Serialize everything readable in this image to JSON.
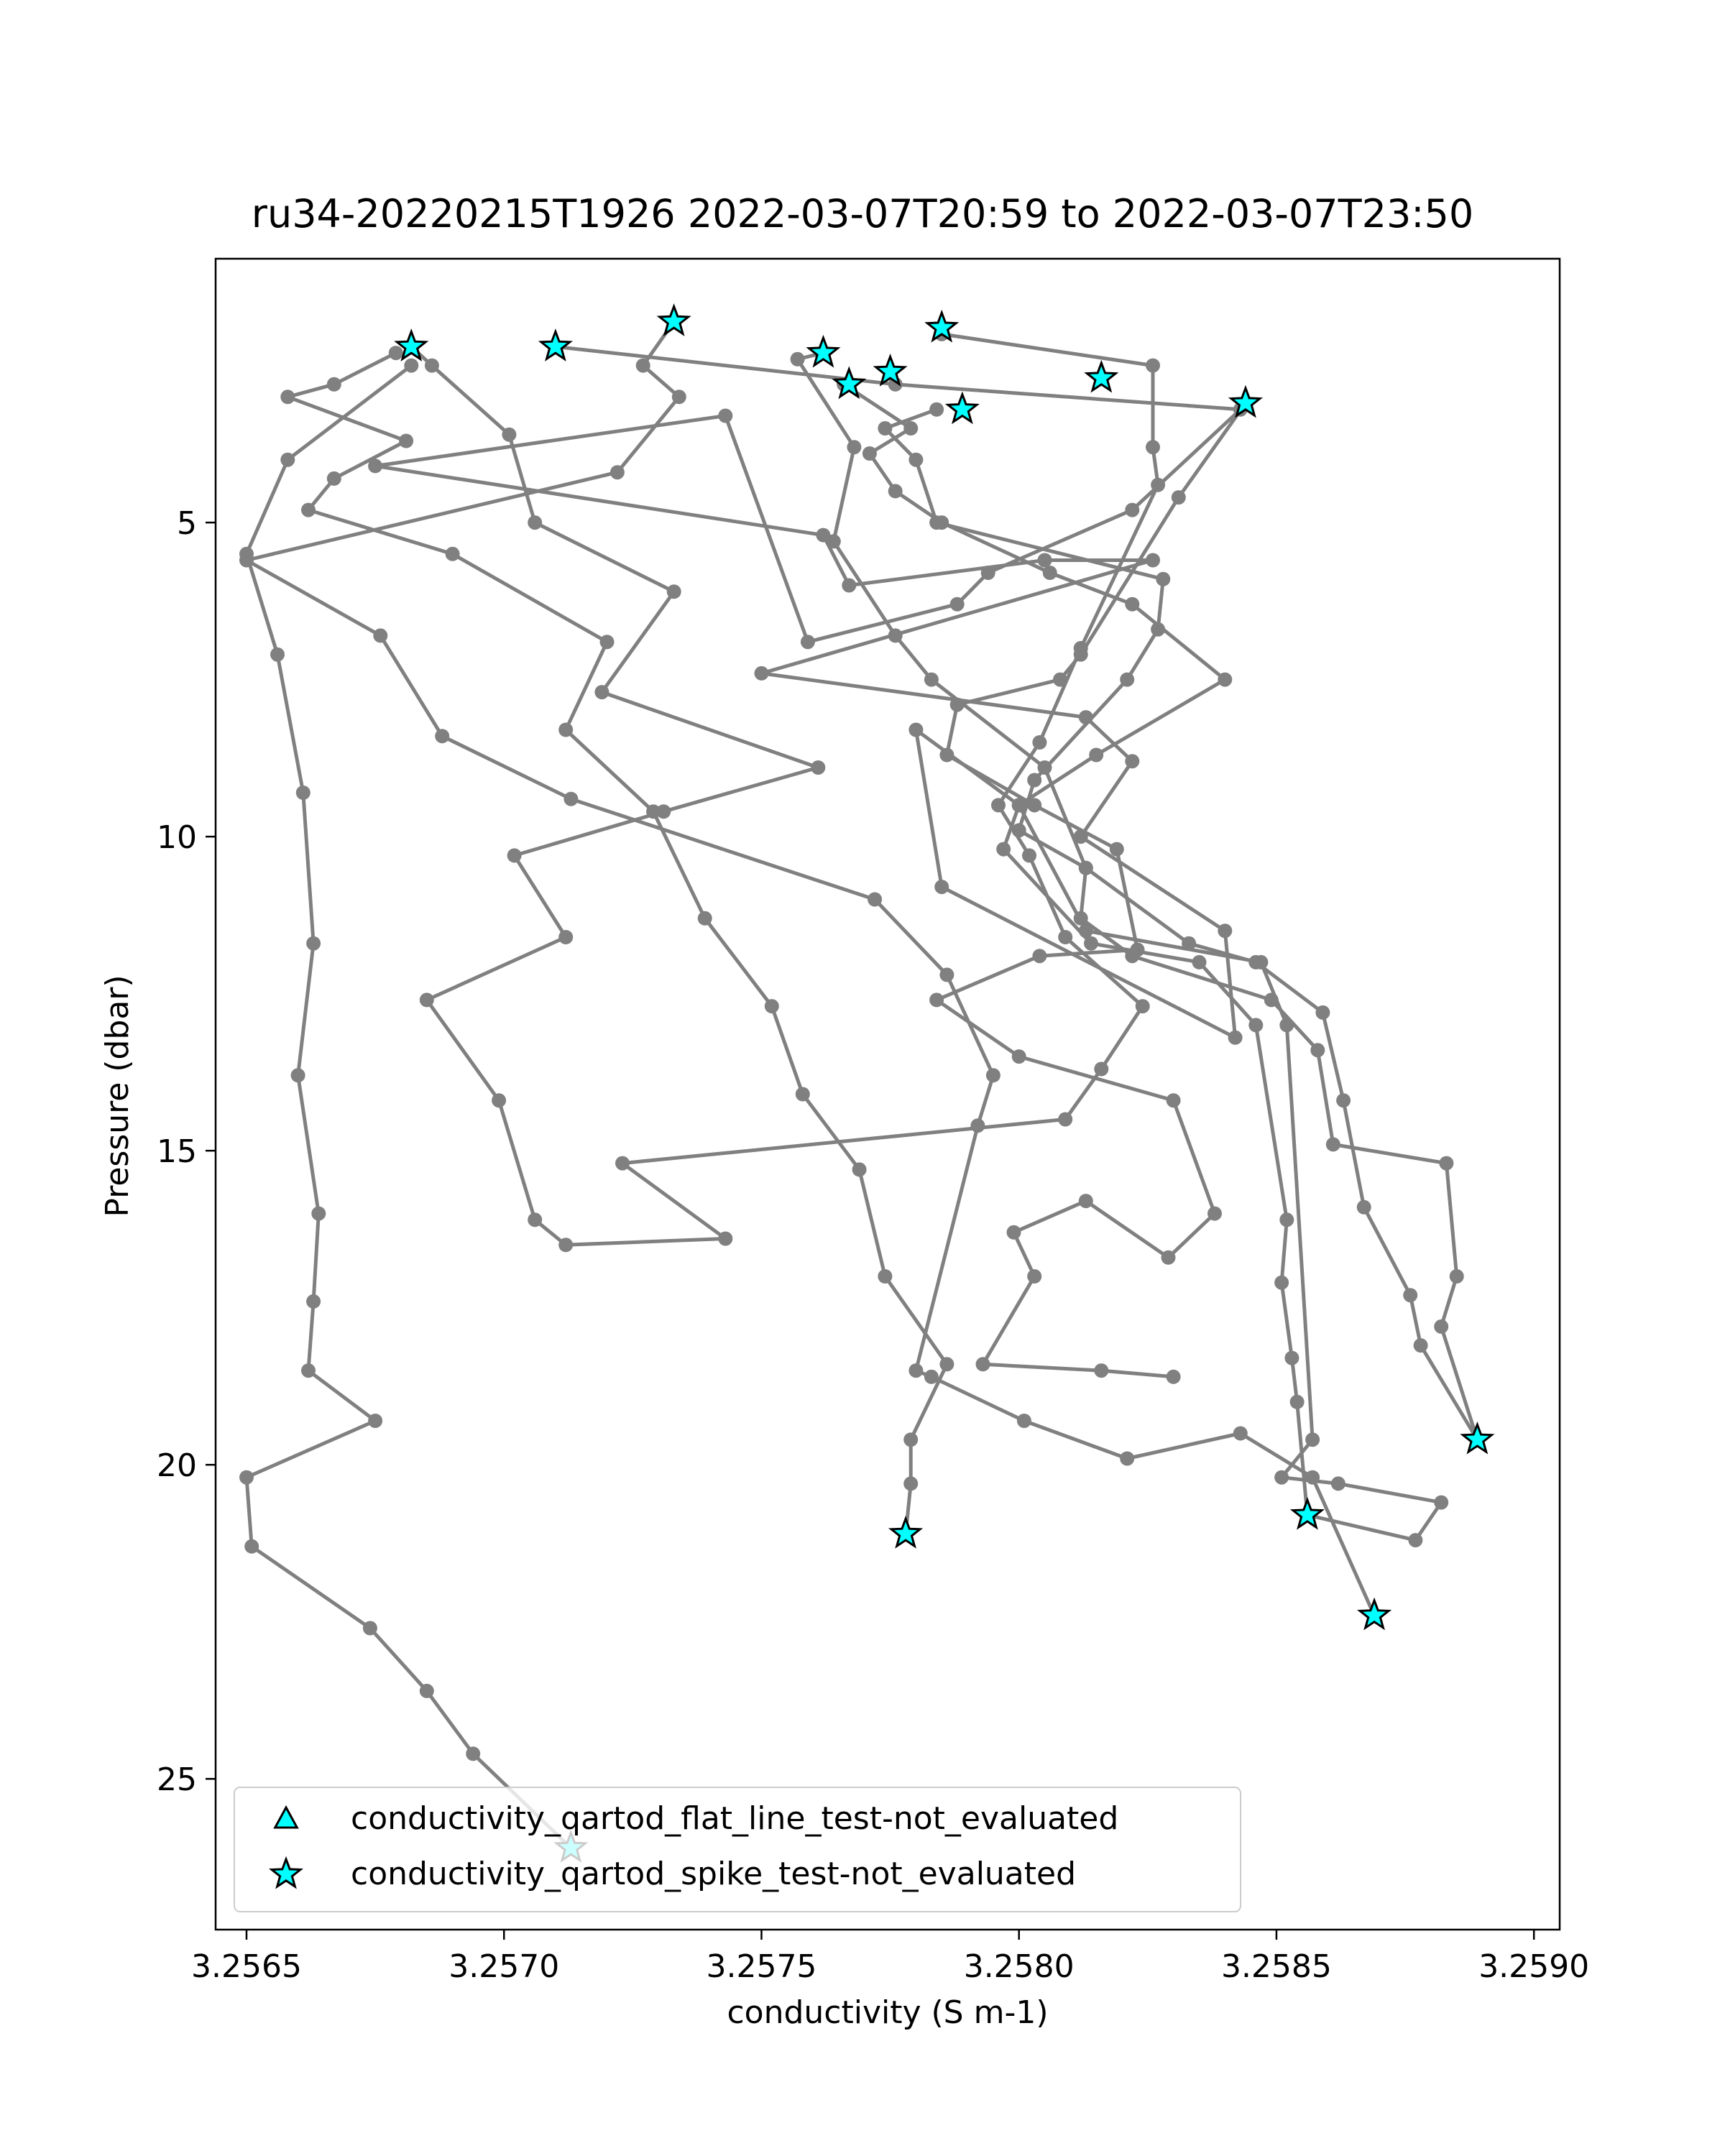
{
  "chart_data": {
    "type": "line",
    "title": "ru34-20220215T1926 2022-03-07T20:59 to 2022-03-07T23:50",
    "xlabel": "conductivity (S m-1)",
    "ylabel": "Pressure (dbar)",
    "xlim": [
      3.25644,
      3.25905
    ],
    "ylim": [
      27.4,
      0.8
    ],
    "y_inverted": true,
    "x_ticks": [
      3.2565,
      3.257,
      3.2575,
      3.258,
      3.2585,
      3.259
    ],
    "x_tick_labels": [
      "3.2565",
      "3.2570",
      "3.2575",
      "3.2580",
      "3.2585",
      "3.2590"
    ],
    "y_ticks": [
      5,
      10,
      15,
      20,
      25
    ],
    "y_tick_labels": [
      "5",
      "10",
      "15",
      "20",
      "25"
    ],
    "grid": false,
    "legend_position": "lower-left",
    "colors": {
      "line": "#808080",
      "marker_fill": "#00ffff",
      "marker_edge": "#000000"
    },
    "series": [
      {
        "values": [
          [
            3.25682,
            2.2
          ],
          [
            3.25686,
            2.5
          ],
          [
            3.25701,
            3.6
          ],
          [
            3.25706,
            5.0
          ],
          [
            3.25733,
            6.1
          ],
          [
            3.25719,
            7.7
          ],
          [
            3.25761,
            8.9
          ],
          [
            3.25731,
            9.6
          ],
          [
            3.25702,
            10.3
          ],
          [
            3.25712,
            11.6
          ],
          [
            3.25685,
            12.6
          ],
          [
            3.25699,
            14.2
          ],
          [
            3.25706,
            16.1
          ],
          [
            3.25712,
            16.5
          ],
          [
            3.25743,
            16.4
          ],
          [
            3.25723,
            15.2
          ],
          [
            3.25809,
            14.5
          ],
          [
            3.25816,
            13.7
          ],
          [
            3.25824,
            12.7
          ],
          [
            3.25809,
            11.6
          ],
          [
            3.25802,
            10.3
          ],
          [
            3.25796,
            9.5
          ],
          [
            3.25804,
            8.5
          ],
          [
            3.25812,
            7.0
          ],
          [
            3.25827,
            4.4
          ],
          [
            3.25826,
            3.8
          ],
          [
            3.25826,
            2.5
          ],
          [
            3.25785,
            2.0
          ]
        ]
      },
      {
        "values": [
          [
            3.2571,
            2.2
          ],
          [
            3.25776,
            2.8
          ],
          [
            3.25843,
            3.2
          ],
          [
            3.25822,
            4.8
          ],
          [
            3.25794,
            5.8
          ],
          [
            3.25788,
            6.3
          ],
          [
            3.25759,
            6.9
          ],
          [
            3.25743,
            3.3
          ],
          [
            3.25675,
            4.1
          ],
          [
            3.25762,
            5.2
          ],
          [
            3.25767,
            6.0
          ],
          [
            3.25805,
            5.6
          ],
          [
            3.25826,
            5.6
          ],
          [
            3.2575,
            7.4
          ],
          [
            3.25813,
            8.1
          ],
          [
            3.25822,
            8.8
          ],
          [
            3.25812,
            10.0
          ],
          [
            3.2584,
            11.5
          ],
          [
            3.25842,
            13.2
          ],
          [
            3.25785,
            10.8
          ],
          [
            3.2578,
            8.3
          ],
          [
            3.258,
            9.5
          ],
          [
            3.25813,
            11.5
          ],
          [
            3.25847,
            12.0
          ],
          [
            3.25852,
            13.0
          ],
          [
            3.25857,
            19.6
          ],
          [
            3.25851,
            20.2
          ],
          [
            3.25862,
            20.3
          ],
          [
            3.25882,
            20.6
          ],
          [
            3.25877,
            21.2
          ],
          [
            3.25856,
            20.8
          ]
        ]
      },
      {
        "values": [
          [
            3.25733,
            1.8
          ],
          [
            3.25727,
            2.5
          ],
          [
            3.25734,
            3.0
          ],
          [
            3.25722,
            4.2
          ],
          [
            3.2565,
            5.6
          ],
          [
            3.25676,
            6.8
          ],
          [
            3.25688,
            8.4
          ],
          [
            3.25713,
            9.4
          ],
          [
            3.25772,
            11.0
          ],
          [
            3.25786,
            12.2
          ],
          [
            3.25795,
            13.8
          ],
          [
            3.25792,
            14.6
          ],
          [
            3.2578,
            18.5
          ],
          [
            3.25783,
            18.6
          ],
          [
            3.25801,
            19.3
          ],
          [
            3.25821,
            19.9
          ],
          [
            3.25843,
            19.5
          ],
          [
            3.25857,
            20.2
          ],
          [
            3.25869,
            22.4
          ]
        ]
      },
      {
        "values": [
          [
            3.25762,
            2.3
          ],
          [
            3.25757,
            2.4
          ],
          [
            3.25768,
            3.8
          ],
          [
            3.25764,
            5.3
          ],
          [
            3.25776,
            6.8
          ],
          [
            3.25783,
            7.5
          ],
          [
            3.25805,
            8.9
          ],
          [
            3.25813,
            10.5
          ],
          [
            3.25833,
            11.7
          ],
          [
            3.25846,
            12.0
          ],
          [
            3.25859,
            12.8
          ],
          [
            3.25863,
            14.2
          ],
          [
            3.25867,
            15.9
          ],
          [
            3.25876,
            17.3
          ],
          [
            3.25878,
            18.1
          ],
          [
            3.25889,
            19.6
          ]
        ]
      },
      {
        "values": [
          [
            3.25766,
            2.8
          ],
          [
            3.25779,
            3.5
          ],
          [
            3.25771,
            3.9
          ],
          [
            3.25776,
            4.5
          ],
          [
            3.25785,
            5.0
          ],
          [
            3.25806,
            5.8
          ],
          [
            3.25822,
            6.3
          ],
          [
            3.2584,
            7.5
          ],
          [
            3.25815,
            8.7
          ],
          [
            3.258,
            9.5
          ],
          [
            3.25797,
            10.2
          ],
          [
            3.25814,
            11.7
          ],
          [
            3.25835,
            12.0
          ],
          [
            3.25846,
            13.0
          ],
          [
            3.25852,
            16.1
          ],
          [
            3.25851,
            17.1
          ],
          [
            3.25853,
            18.3
          ],
          [
            3.25854,
            19.0
          ],
          [
            3.25856,
            20.8
          ]
        ]
      },
      {
        "values": [
          [
            3.25784,
            3.2
          ],
          [
            3.25774,
            3.5
          ],
          [
            3.2578,
            4.0
          ],
          [
            3.25784,
            5.0
          ],
          [
            3.25828,
            5.9
          ],
          [
            3.25827,
            6.7
          ],
          [
            3.25821,
            7.5
          ],
          [
            3.25803,
            9.1
          ],
          [
            3.258,
            9.9
          ],
          [
            3.25813,
            10.5
          ],
          [
            3.25812,
            11.3
          ],
          [
            3.25822,
            11.9
          ],
          [
            3.25849,
            12.6
          ],
          [
            3.25858,
            13.4
          ],
          [
            3.25861,
            14.9
          ],
          [
            3.25883,
            15.2
          ],
          [
            3.25885,
            17.0
          ],
          [
            3.25882,
            17.8
          ],
          [
            3.25889,
            19.6
          ]
        ]
      },
      {
        "values": [
          [
            3.25844,
            3.1
          ],
          [
            3.25831,
            4.6
          ],
          [
            3.25812,
            7.1
          ],
          [
            3.25808,
            7.5
          ],
          [
            3.25788,
            7.9
          ],
          [
            3.25786,
            8.7
          ],
          [
            3.25803,
            9.5
          ],
          [
            3.25819,
            10.2
          ],
          [
            3.25823,
            11.8
          ],
          [
            3.25804,
            11.9
          ],
          [
            3.25784,
            12.6
          ],
          [
            3.258,
            13.5
          ],
          [
            3.2583,
            14.2
          ],
          [
            3.25838,
            16.0
          ],
          [
            3.25829,
            16.7
          ],
          [
            3.25813,
            15.8
          ],
          [
            3.25799,
            16.3
          ],
          [
            3.25803,
            17.0
          ],
          [
            3.25793,
            18.4
          ],
          [
            3.25816,
            18.5
          ],
          [
            3.2583,
            18.6
          ]
        ]
      },
      {
        "values": [
          [
            3.25679,
            2.3
          ],
          [
            3.25667,
            2.8
          ],
          [
            3.25658,
            3.0
          ],
          [
            3.25681,
            3.7
          ],
          [
            3.25667,
            4.3
          ],
          [
            3.25662,
            4.8
          ],
          [
            3.2569,
            5.5
          ],
          [
            3.2572,
            6.9
          ],
          [
            3.25712,
            8.3
          ],
          [
            3.25729,
            9.6
          ],
          [
            3.25739,
            11.3
          ],
          [
            3.25752,
            12.7
          ],
          [
            3.25758,
            14.1
          ],
          [
            3.25769,
            15.3
          ],
          [
            3.25774,
            17.0
          ],
          [
            3.25786,
            18.4
          ],
          [
            3.25779,
            19.6
          ],
          [
            3.25779,
            20.3
          ],
          [
            3.25778,
            21.1
          ]
        ]
      },
      {
        "values": [
          [
            3.25682,
            2.5
          ],
          [
            3.25658,
            4.0
          ],
          [
            3.2565,
            5.5
          ],
          [
            3.25656,
            7.1
          ],
          [
            3.25661,
            9.3
          ],
          [
            3.25663,
            11.7
          ],
          [
            3.2566,
            13.8
          ],
          [
            3.25664,
            16.0
          ],
          [
            3.25663,
            17.4
          ],
          [
            3.25662,
            18.5
          ],
          [
            3.25675,
            19.3
          ],
          [
            3.2565,
            20.2
          ],
          [
            3.25651,
            21.3
          ],
          [
            3.25674,
            22.6
          ],
          [
            3.25685,
            23.6
          ],
          [
            3.25694,
            24.6
          ],
          [
            3.25713,
            26.1
          ]
        ]
      }
    ],
    "flag_markers": [
      {
        "label": "conductivity_qartod_flat_line_test-not_evaluated",
        "marker": "triangle",
        "points": []
      },
      {
        "label": "conductivity_qartod_spike_test-not_evaluated",
        "marker": "star",
        "points": [
          [
            3.25682,
            2.2
          ],
          [
            3.2571,
            2.2
          ],
          [
            3.25733,
            1.8
          ],
          [
            3.25762,
            2.3
          ],
          [
            3.25767,
            2.8
          ],
          [
            3.25775,
            2.6
          ],
          [
            3.25785,
            1.9
          ],
          [
            3.25789,
            3.2
          ],
          [
            3.25816,
            2.7
          ],
          [
            3.25844,
            3.1
          ],
          [
            3.25778,
            21.1
          ],
          [
            3.25856,
            20.8
          ],
          [
            3.25869,
            22.4
          ],
          [
            3.25889,
            19.6
          ],
          [
            3.25713,
            26.1
          ]
        ]
      }
    ]
  }
}
